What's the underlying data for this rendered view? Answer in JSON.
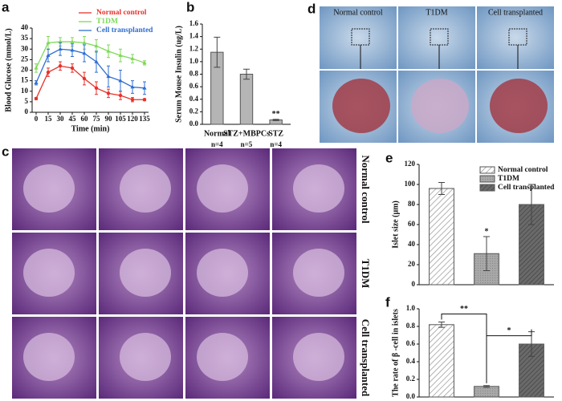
{
  "chart_data": [
    {
      "panel": "a",
      "type": "line",
      "x": [
        0,
        15,
        30,
        45,
        60,
        75,
        90,
        105,
        120,
        135
      ],
      "xlim": [
        -5,
        140
      ],
      "xticks": [
        0,
        15,
        30,
        45,
        60,
        75,
        90,
        105,
        120,
        135
      ],
      "ylim": [
        0,
        40
      ],
      "yticks": [
        0,
        5,
        10,
        15,
        20,
        25,
        30,
        35,
        40
      ],
      "xlabel": "Time (min)",
      "ylabel": "Blood Glucose (mmol/L)",
      "legend": "top-right",
      "series": [
        {
          "name": "Normal control",
          "color": "#e8322b",
          "marker": "circle",
          "values": [
            6.5,
            19,
            22,
            21,
            16,
            11.5,
            9,
            8,
            6,
            6
          ],
          "errors": [
            0.5,
            2,
            2,
            2,
            3,
            3,
            2,
            2,
            1,
            0.5
          ]
        },
        {
          "name": "T1DM",
          "color": "#7ed957",
          "marker": "triangle",
          "values": [
            21,
            33,
            33.5,
            33.5,
            33,
            31.5,
            29,
            27,
            25.5,
            23.5
          ],
          "errors": [
            2,
            3,
            2,
            2,
            3,
            3,
            3,
            3,
            2,
            1
          ]
        },
        {
          "name": "Cell transplanted",
          "color": "#2f6fd0",
          "marker": "triangle",
          "values": [
            14,
            27,
            30,
            29.5,
            28,
            24,
            17,
            15,
            12,
            11.5
          ],
          "errors": [
            1,
            3,
            3,
            3,
            4,
            5,
            5,
            5,
            3,
            3
          ]
        }
      ]
    },
    {
      "panel": "b",
      "type": "bar",
      "categories": [
        "Normal",
        "STZ+MBPCs",
        "STZ"
      ],
      "category_notes": [
        "n=4",
        "n=5",
        "n=4"
      ],
      "values": [
        1.15,
        0.8,
        0.07
      ],
      "errors": [
        0.24,
        0.08,
        0.01
      ],
      "value_notes": [
        null,
        null,
        "**"
      ],
      "color": "#b5b5b5",
      "ylim": [
        0,
        1.6
      ],
      "yticks": [
        {
          "value": 0,
          "label": "0.0"
        },
        0.2,
        0.4,
        0.6,
        0.8,
        {
          "value": 1,
          "label": "1.0"
        },
        1.2,
        1.4,
        1.6
      ],
      "ylabel": "Serum Mouse Insulin (ug/L)"
    },
    {
      "panel": "e",
      "type": "bar",
      "values": [
        96,
        31,
        80
      ],
      "errors": [
        6,
        17,
        20
      ],
      "value_notes": [
        null,
        "*",
        null
      ],
      "patterns": [
        "light-hatch",
        "gray",
        "dark-hatch"
      ],
      "legend_labels": [
        "Normal control",
        "T1DM",
        "Cell transplanted"
      ],
      "ylim": [
        0,
        120
      ],
      "yticks": [
        0,
        20,
        40,
        60,
        80,
        100,
        120
      ],
      "ylabel": "Islet size (μm)"
    },
    {
      "panel": "f",
      "type": "bar",
      "values": [
        0.82,
        0.12,
        0.6
      ],
      "errors": [
        0.03,
        0.01,
        0.14
      ],
      "patterns": [
        "light-hatch",
        "gray",
        "dark-hatch"
      ],
      "brackets": [
        {
          "text": "**",
          "between": [
            0,
            1
          ]
        },
        {
          "text": "*",
          "between": [
            1,
            2
          ]
        }
      ],
      "ylim": [
        0,
        1
      ],
      "yticks": [
        {
          "value": 0,
          "label": "0.0"
        },
        0.2,
        0.4,
        0.6,
        0.8,
        {
          "value": 1,
          "label": "1.0"
        }
      ],
      "ylabel": "The rate of β -cell in islets"
    }
  ],
  "panel_c": {
    "label": "c",
    "row_labels": [
      "Normal control",
      "T1DM",
      "Cell transplanted"
    ]
  },
  "panel_d": {
    "label": "d",
    "column_labels": [
      "Normal control",
      "T1DM",
      "Cell transplanted"
    ]
  }
}
